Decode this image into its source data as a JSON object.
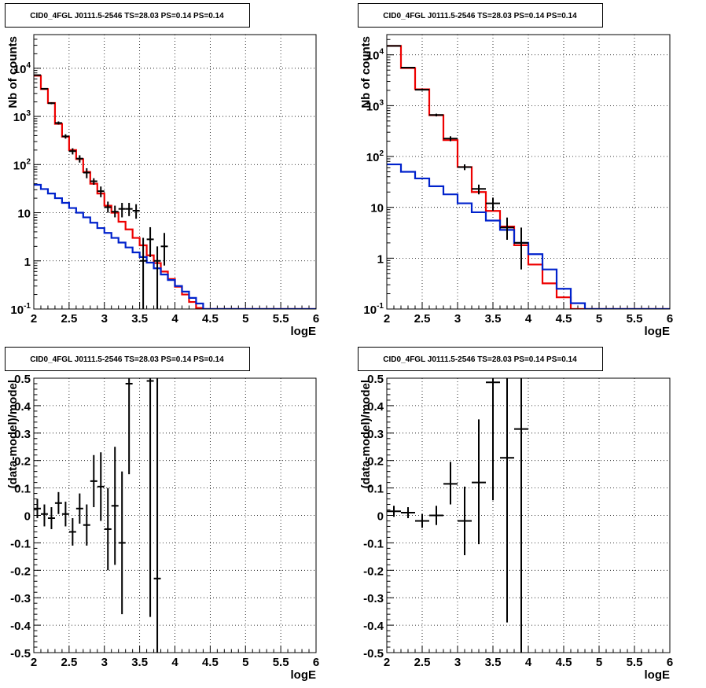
{
  "colors": {
    "data": "#000000",
    "total_model": "#ee0000",
    "component": "#0022cc",
    "grid": "#000000"
  },
  "chart_data": [
    {
      "type": "line",
      "title": "CID0_4FGL J0111.5-2546 TS=28.03 PS=0.14 PS=0.14",
      "xlabel": "logE",
      "ylabel": "Nb of counts",
      "xlim": [
        2,
        6
      ],
      "ylim": [
        0.1,
        50000
      ],
      "yscale": "log",
      "grid": true,
      "xticks": [
        "2",
        "2.5",
        "3",
        "3.5",
        "4",
        "4.5",
        "5",
        "5.5",
        "6"
      ],
      "yticks": [
        "10^-1",
        "1",
        "10",
        "10^2",
        "10^3",
        "10^4"
      ],
      "bin_width": 0.1,
      "bin_edges": [
        2,
        2.1,
        2.2,
        2.3,
        2.4,
        2.5,
        2.6,
        2.7,
        2.8,
        2.9,
        3.0,
        3.1,
        3.2,
        3.3,
        3.4,
        3.5,
        3.6,
        3.7,
        3.8,
        3.9,
        4.0,
        4.1,
        4.2,
        4.3,
        4.4,
        4.5,
        4.6,
        4.7,
        4.8,
        4.9,
        5.0,
        5.1,
        5.2,
        5.3,
        5.4,
        5.5,
        5.6,
        5.7,
        5.8,
        5.9,
        6.0
      ],
      "series": [
        {
          "role": "total_model",
          "values": [
            7000,
            3700,
            1900,
            700,
            380,
            200,
            130,
            70,
            40,
            25,
            14,
            10,
            6.5,
            4.5,
            3,
            2.1,
            1.3,
            0.9,
            0.6,
            0.42,
            0.29,
            0.2,
            0.14,
            0.105,
            0.1,
            0.1,
            0.1,
            0.1,
            0.1,
            0.1,
            0.1,
            0.1,
            0.1,
            0.1,
            0.1,
            0.1,
            0.1,
            0.1,
            0.1,
            0.1
          ]
        },
        {
          "role": "component",
          "values": [
            38,
            31,
            25,
            20,
            16,
            12.5,
            10,
            8,
            6.2,
            4.8,
            3.8,
            3.0,
            2.4,
            1.9,
            1.5,
            1.2,
            0.92,
            0.7,
            0.52,
            0.4,
            0.3,
            0.23,
            0.17,
            0.13,
            0.1,
            0.1,
            0.1,
            0.1,
            0.1,
            0.1,
            0.1,
            0.1,
            0.1,
            0.1,
            0.1,
            0.1,
            0.1,
            0.1,
            0.1,
            0.1
          ]
        },
        {
          "role": "data",
          "points": [
            {
              "x": 2.05,
              "y": 7200,
              "lo": 7040,
              "hi": 7360
            },
            {
              "x": 2.15,
              "y": 3750,
              "lo": 3630,
              "hi": 3870
            },
            {
              "x": 2.25,
              "y": 1880,
              "lo": 1790,
              "hi": 1970
            },
            {
              "x": 2.35,
              "y": 730,
              "lo": 675,
              "hi": 785
            },
            {
              "x": 2.45,
              "y": 385,
              "lo": 345,
              "hi": 425
            },
            {
              "x": 2.55,
              "y": 190,
              "lo": 162,
              "hi": 218
            },
            {
              "x": 2.65,
              "y": 133,
              "lo": 110,
              "hi": 156
            },
            {
              "x": 2.75,
              "y": 68,
              "lo": 52,
              "hi": 84
            },
            {
              "x": 2.85,
              "y": 45,
              "lo": 38,
              "hi": 52
            },
            {
              "x": 2.95,
              "y": 28,
              "lo": 21,
              "hi": 35
            },
            {
              "x": 3.05,
              "y": 13,
              "lo": 10,
              "hi": 17
            },
            {
              "x": 3.15,
              "y": 10.5,
              "lo": 8,
              "hi": 14
            },
            {
              "x": 3.25,
              "y": 12,
              "lo": 8,
              "hi": 16
            },
            {
              "x": 3.35,
              "y": 12,
              "lo": 8.5,
              "hi": 16
            },
            {
              "x": 3.45,
              "y": 11,
              "lo": 7.5,
              "hi": 15
            },
            {
              "x": 3.55,
              "y": 1,
              "lo": 0.1,
              "hi": 3
            },
            {
              "x": 3.65,
              "y": 2.8,
              "lo": 1.2,
              "hi": 5
            },
            {
              "x": 3.75,
              "y": 1,
              "lo": 0.1,
              "hi": 2
            },
            {
              "x": 3.85,
              "y": 2,
              "lo": 0.8,
              "hi": 3.8
            }
          ]
        }
      ]
    },
    {
      "type": "line",
      "title": "CID0_4FGL J0111.5-2546 TS=28.03 PS=0.14 PS=0.14",
      "xlabel": "logE",
      "ylabel": "Nb of counts",
      "xlim": [
        2,
        6
      ],
      "ylim": [
        0.1,
        25000
      ],
      "yscale": "log",
      "grid": true,
      "xticks": [
        "2",
        "2.5",
        "3",
        "3.5",
        "4",
        "4.5",
        "5",
        "5.5",
        "6"
      ],
      "yticks": [
        "10^-1",
        "1",
        "10",
        "10^2",
        "10^3",
        "10^4"
      ],
      "bin_width": 0.2,
      "bin_edges": [
        2,
        2.2,
        2.4,
        2.6,
        2.8,
        3.0,
        3.2,
        3.4,
        3.6,
        3.8,
        4.0,
        4.2,
        4.4,
        4.6,
        4.8,
        5.0,
        5.2,
        5.4,
        5.6,
        5.8,
        6.0
      ],
      "series": [
        {
          "role": "total_model",
          "values": [
            15000,
            5500,
            2100,
            650,
            210,
            62,
            20,
            8.5,
            4.2,
            1.8,
            0.75,
            0.32,
            0.17,
            0.1,
            0.1,
            0.1,
            0.1,
            0.1,
            0.1,
            0.1
          ]
        },
        {
          "role": "component",
          "values": [
            70,
            50,
            37,
            26,
            18,
            12,
            8,
            5.5,
            3.6,
            2.0,
            1.2,
            0.6,
            0.25,
            0.13,
            0.1,
            0.1,
            0.1,
            0.1,
            0.1,
            0.1
          ]
        },
        {
          "role": "data",
          "points": [
            {
              "x": 2.1,
              "y": 15000,
              "lo": 14700,
              "hi": 15300
            },
            {
              "x": 2.3,
              "y": 5600,
              "lo": 5450,
              "hi": 5750
            },
            {
              "x": 2.5,
              "y": 2060,
              "lo": 1970,
              "hi": 2150
            },
            {
              "x": 2.7,
              "y": 655,
              "lo": 615,
              "hi": 695
            },
            {
              "x": 2.9,
              "y": 225,
              "lo": 200,
              "hi": 250
            },
            {
              "x": 3.1,
              "y": 62,
              "lo": 54,
              "hi": 70
            },
            {
              "x": 3.3,
              "y": 23,
              "lo": 18,
              "hi": 28
            },
            {
              "x": 3.5,
              "y": 12,
              "lo": 8.6,
              "hi": 15.5
            },
            {
              "x": 3.7,
              "y": 4,
              "lo": 2.3,
              "hi": 6.3
            },
            {
              "x": 3.9,
              "y": 2,
              "lo": 0.6,
              "hi": 4
            }
          ]
        }
      ]
    },
    {
      "type": "scatter",
      "title": "CID0_4FGL J0111.5-2546 TS=28.03 PS=0.14 PS=0.14",
      "xlabel": "logE",
      "ylabel": "(data-model)/model",
      "xlim": [
        2,
        6
      ],
      "ylim": [
        -0.5,
        0.5
      ],
      "grid": true,
      "xticks": [
        "2",
        "2.5",
        "3",
        "3.5",
        "4",
        "4.5",
        "5",
        "5.5",
        "6"
      ],
      "yticks": [
        "-0.5",
        "-0.4",
        "-0.3",
        "-0.2",
        "-0.1",
        "0",
        "0.1",
        "0.2",
        "0.3",
        "0.4",
        "0.5"
      ],
      "bin_width": 0.1,
      "points": [
        {
          "x": 2.05,
          "y": 0.025,
          "lo": -0.01,
          "hi": 0.06
        },
        {
          "x": 2.15,
          "y": 0.005,
          "lo": -0.04,
          "hi": 0.04
        },
        {
          "x": 2.25,
          "y": -0.01,
          "lo": -0.05,
          "hi": 0.03
        },
        {
          "x": 2.35,
          "y": 0.045,
          "lo": 0.005,
          "hi": 0.085
        },
        {
          "x": 2.45,
          "y": 0.005,
          "lo": -0.04,
          "hi": 0.05
        },
        {
          "x": 2.55,
          "y": -0.06,
          "lo": -0.11,
          "hi": -0.01
        },
        {
          "x": 2.65,
          "y": 0.025,
          "lo": -0.03,
          "hi": 0.08
        },
        {
          "x": 2.75,
          "y": -0.035,
          "lo": -0.11,
          "hi": 0.04
        },
        {
          "x": 2.85,
          "y": 0.125,
          "lo": 0.03,
          "hi": 0.22
        },
        {
          "x": 2.95,
          "y": 0.105,
          "lo": -0.02,
          "hi": 0.23
        },
        {
          "x": 3.05,
          "y": -0.05,
          "lo": -0.2,
          "hi": 0.1
        },
        {
          "x": 3.15,
          "y": 0.035,
          "lo": -0.18,
          "hi": 0.25
        },
        {
          "x": 3.25,
          "y": -0.1,
          "lo": -0.36,
          "hi": 0.16
        },
        {
          "x": 3.35,
          "y": 0.48,
          "lo": 0.15,
          "hi": 0.5
        },
        {
          "x": 3.65,
          "y": 0.49,
          "lo": -0.37,
          "hi": 0.5
        },
        {
          "x": 3.75,
          "y": -0.23,
          "lo": -0.5,
          "hi": 0.5
        }
      ]
    },
    {
      "type": "scatter",
      "title": "CID0_4FGL J0111.5-2546 TS=28.03 PS=0.14 PS=0.14",
      "xlabel": "logE",
      "ylabel": "(data-model)/model",
      "xlim": [
        2,
        6
      ],
      "ylim": [
        -0.5,
        0.5
      ],
      "grid": true,
      "xticks": [
        "2",
        "2.5",
        "3",
        "3.5",
        "4",
        "4.5",
        "5",
        "5.5",
        "6"
      ],
      "yticks": [
        "-0.5",
        "-0.4",
        "-0.3",
        "-0.2",
        "-0.1",
        "0",
        "0.1",
        "0.2",
        "0.3",
        "0.4",
        "0.5"
      ],
      "bin_width": 0.2,
      "points": [
        {
          "x": 2.1,
          "y": 0.015,
          "lo": -0.005,
          "hi": 0.035
        },
        {
          "x": 2.3,
          "y": 0.01,
          "lo": -0.01,
          "hi": 0.03
        },
        {
          "x": 2.5,
          "y": -0.02,
          "lo": -0.045,
          "hi": 0.005
        },
        {
          "x": 2.7,
          "y": 0.0,
          "lo": -0.035,
          "hi": 0.035
        },
        {
          "x": 2.9,
          "y": 0.115,
          "lo": 0.04,
          "hi": 0.195
        },
        {
          "x": 3.1,
          "y": -0.02,
          "lo": -0.145,
          "hi": 0.105
        },
        {
          "x": 3.3,
          "y": 0.12,
          "lo": -0.105,
          "hi": 0.35
        },
        {
          "x": 3.5,
          "y": 0.485,
          "lo": 0.055,
          "hi": 0.5
        },
        {
          "x": 3.7,
          "y": 0.21,
          "lo": -0.39,
          "hi": 0.5
        },
        {
          "x": 3.9,
          "y": 0.315,
          "lo": -0.5,
          "hi": 0.5
        }
      ]
    }
  ]
}
